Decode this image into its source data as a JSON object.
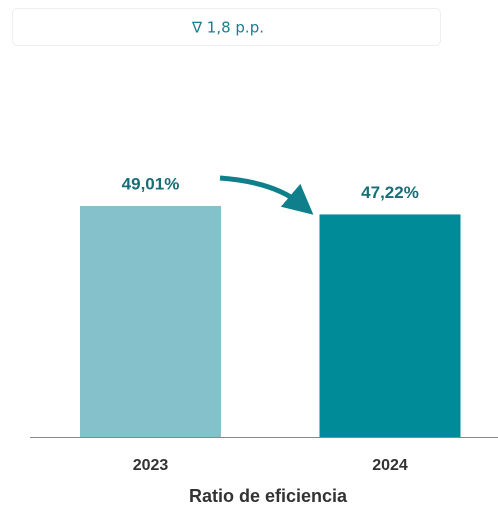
{
  "chart_data": {
    "type": "bar",
    "annotation": "∇ 1,8 p.p.",
    "title": "Ratio de eficiencia",
    "categories": [
      "2023",
      "2024"
    ],
    "values": [
      49.01,
      47.22
    ],
    "value_labels": [
      "49,01%",
      "47,22%"
    ],
    "colors": [
      "#85c1cb",
      "#008b99"
    ]
  }
}
